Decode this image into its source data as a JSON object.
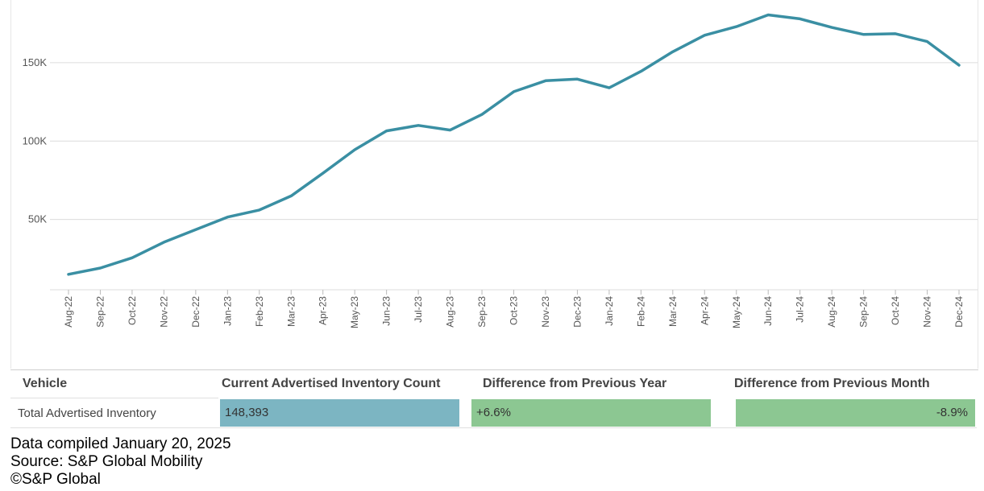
{
  "chart_data": {
    "type": "line",
    "title": "",
    "xlabel": "",
    "ylabel": "",
    "ylim": [
      0,
      190000
    ],
    "yticks": [
      50000,
      100000,
      150000
    ],
    "ytick_labels": [
      "50K",
      "100K",
      "150K"
    ],
    "grid": true,
    "series": [
      {
        "name": "Total Advertised Inventory",
        "color": "#3a8fa3",
        "values": [
          15000,
          19000,
          25500,
          35500,
          43500,
          51500,
          56000,
          65000,
          79500,
          94500,
          106500,
          110000,
          107000,
          117000,
          131500,
          138500,
          139500,
          134000,
          144500,
          157000,
          167500,
          173000,
          180500,
          178000,
          172500,
          168000,
          168500,
          163500,
          148393
        ]
      }
    ],
    "categories": [
      "Aug-22",
      "Sep-22",
      "Oct-22",
      "Nov-22",
      "Dec-22",
      "Jan-23",
      "Feb-23",
      "Mar-23",
      "Apr-23",
      "May-23",
      "Jun-23",
      "Jul-23",
      "Aug-23",
      "Sep-23",
      "Oct-23",
      "Nov-23",
      "Dec-23",
      "Jan-24",
      "Feb-24",
      "Mar-24",
      "Apr-24",
      "May-24",
      "Jun-24",
      "Jul-24",
      "Aug-24",
      "Sep-24",
      "Oct-24",
      "Nov-24",
      "Dec-24"
    ]
  },
  "table": {
    "headers": [
      "Vehicle",
      "Current Advertised Inventory Count",
      "Difference from Previous Year",
      "Difference from Previous Month"
    ],
    "row": {
      "vehicle": "Total Advertised Inventory",
      "count": "148,393",
      "yoy": "+6.6%",
      "mom": "-8.9%"
    },
    "colors": {
      "count_bg": "#7cb5c2",
      "diff_bg": "#8cc792"
    }
  },
  "footer": {
    "compiled": "Data compiled January 20, 2025",
    "source": "Source: S&P Global Mobility",
    "copyright": "©S&P Global"
  }
}
